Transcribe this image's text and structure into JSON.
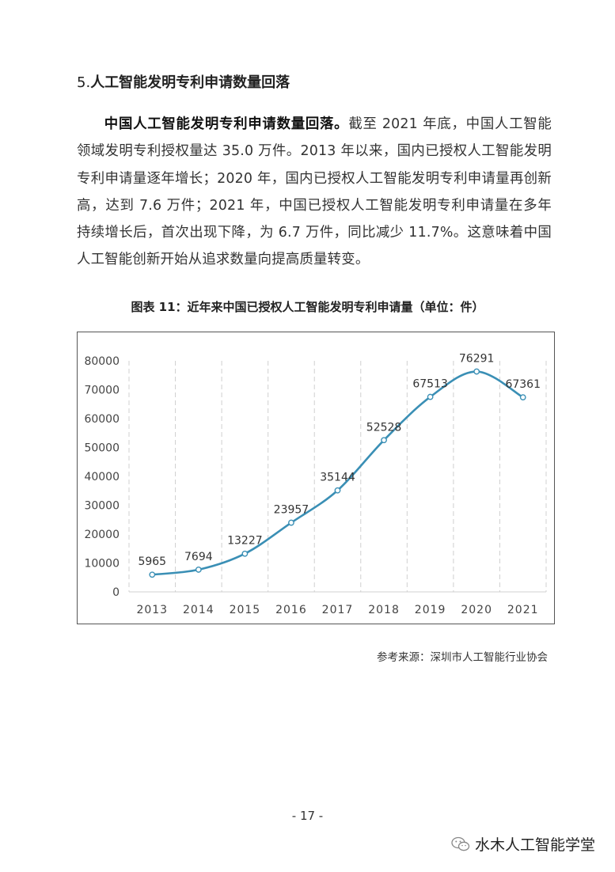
{
  "section": {
    "number": "5.",
    "title": "人工智能发明专利申请数量回落"
  },
  "paragraph": {
    "lead": "中国人工智能发明专利申请数量回落。",
    "body": "截至 2021 年底，中国人工智能领域发明专利授权量达 35.0 万件。2013 年以来，国内已授权人工智能发明专利申请量逐年增长；2020 年，国内已授权人工智能发明专利申请量再创新高，达到 7.6 万件；2021 年，中国已授权人工智能发明专利申请量在多年持续增长后，首次出现下降，为 6.7 万件，同比减少 11.7%。这意味着中国人工智能创新开始从追求数量向提高质量转变。"
  },
  "chart_caption": "图表 11：近年来中国已授权人工智能发明专利申请量（单位：件）",
  "chart_data": {
    "type": "line",
    "categories": [
      "2013",
      "2014",
      "2015",
      "2016",
      "2017",
      "2018",
      "2019",
      "2020",
      "2021"
    ],
    "values": [
      5965,
      7694,
      13227,
      23957,
      35144,
      52528,
      67513,
      76291,
      67361
    ],
    "yticks": [
      "0",
      "10000",
      "20000",
      "30000",
      "40000",
      "50000",
      "60000",
      "70000",
      "80000"
    ],
    "ylim": [
      0,
      80000
    ],
    "smooth": true,
    "grid": "vertical dashed",
    "line_color": "#3a8fb5"
  },
  "source_note": "参考来源：深圳市人工智能行业协会",
  "page_number": "- 17 -",
  "watermark": {
    "text": "水木人工智能学堂",
    "icon": "wechat-icon"
  }
}
